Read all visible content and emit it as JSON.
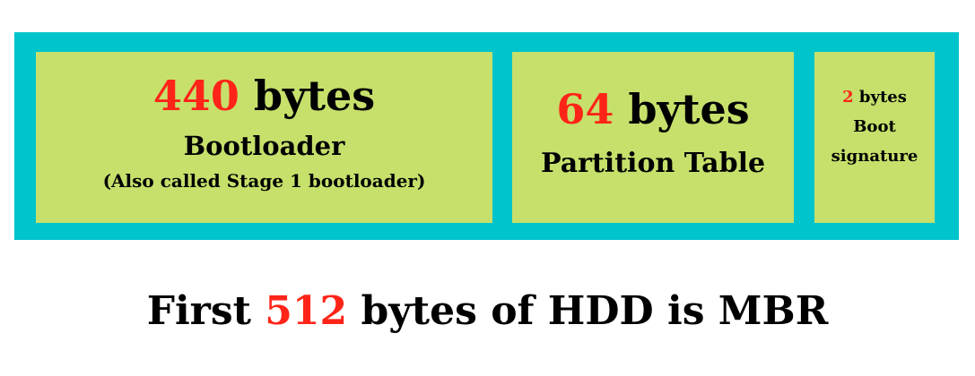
{
  "mbr": {
    "bootloader": {
      "size_number": "440",
      "size_unit": "bytes",
      "name": "Bootloader",
      "note": "(Also called Stage 1 bootloader)"
    },
    "partition_table": {
      "size_number": "64",
      "size_unit": "bytes",
      "name": "Partition Table"
    },
    "boot_signature": {
      "size_number": "2",
      "size_unit": "bytes",
      "name_line1": "Boot",
      "name_line2": "signature"
    }
  },
  "caption": {
    "before": "First",
    "number": "512",
    "after": "bytes of HDD is MBR"
  },
  "colors": {
    "frame": "#00c4cc",
    "box": "#c6e06b",
    "highlight": "#ff2418",
    "text": "#000000"
  }
}
